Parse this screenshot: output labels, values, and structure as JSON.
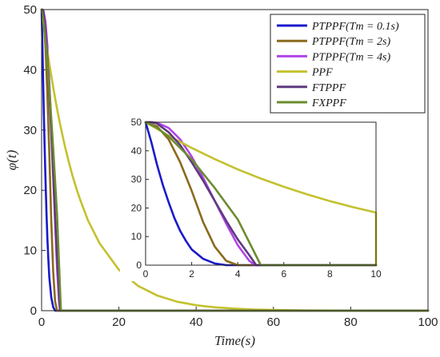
{
  "chart_data": [
    {
      "type": "line",
      "title": "",
      "xlabel": "Time(s)",
      "ylabel": "φ(t)",
      "xlim": [
        0,
        100
      ],
      "ylim": [
        0,
        50
      ],
      "xticks": [
        "0",
        "20",
        "40",
        "60",
        "80",
        "100"
      ],
      "yticks": [
        "0",
        "10",
        "20",
        "30",
        "40",
        "50"
      ],
      "grid": false,
      "legend_position": "top-right",
      "series": [
        {
          "name": "PTPPF(Tm = 0.1s)",
          "color": "#1a1acc",
          "x": [
            0,
            0.25,
            0.5,
            0.75,
            1.0,
            1.25,
            1.5,
            1.75,
            2.0,
            2.5,
            3.0,
            3.5,
            100
          ],
          "y": [
            50,
            43,
            35,
            28,
            22,
            16.5,
            12,
            8.5,
            5.5,
            2.2,
            0.6,
            0,
            0
          ]
        },
        {
          "name": "PTPPF(Tm = 2s)",
          "color": "#8b6a1e",
          "x": [
            0,
            0.5,
            1.0,
            1.5,
            2.0,
            2.5,
            3.0,
            3.5,
            4.0,
            100
          ],
          "y": [
            50,
            48.5,
            44,
            36,
            26,
            15,
            6.5,
            1.5,
            0,
            0
          ]
        },
        {
          "name": "PTPPF(Tm = 4s)",
          "color": "#b044e8",
          "x": [
            0,
            0.25,
            0.5,
            1.0,
            1.5,
            2.0,
            2.5,
            3.0,
            3.5,
            4.0,
            4.5,
            4.75,
            100
          ],
          "y": [
            50,
            50,
            49.8,
            48,
            44,
            38,
            30.5,
            22.5,
            14.5,
            7.0,
            1.5,
            0,
            0
          ]
        },
        {
          "name": "PPF",
          "color": "#c3c12e",
          "x": [
            0,
            1,
            2,
            3,
            4,
            5,
            6,
            7,
            8,
            9,
            10,
            12,
            15,
            20,
            25,
            30,
            35,
            40,
            45,
            50,
            55,
            60,
            65,
            70,
            80,
            90,
            100
          ],
          "y": [
            50,
            45.3,
            41,
            37.1,
            33.5,
            30.3,
            27.4,
            24.8,
            22.4,
            20.3,
            18.4,
            15,
            11.2,
            6.8,
            4.1,
            2.5,
            1.5,
            0.9,
            0.55,
            0.34,
            0.2,
            0.12,
            0.07,
            0.04,
            0.01,
            0,
            0
          ]
        },
        {
          "name": "FTPPF",
          "color": "#5e3a80",
          "x": [
            0,
            0.25,
            0.5,
            1.0,
            1.5,
            2.0,
            2.5,
            3.0,
            3.5,
            4.0,
            4.5,
            4.8,
            100
          ],
          "y": [
            50,
            50,
            49.5,
            46.5,
            42,
            36,
            29.5,
            22.5,
            15.5,
            9,
            3.5,
            0,
            0
          ]
        },
        {
          "name": "FXPPF",
          "color": "#6c8c2e",
          "x": [
            0,
            0.5,
            1.0,
            2.0,
            3.0,
            4.0,
            5.0,
            100
          ],
          "y": [
            50,
            48,
            45,
            37,
            27,
            16,
            0,
            0
          ]
        }
      ]
    },
    {
      "type": "line",
      "title": "",
      "xlim": [
        0,
        10
      ],
      "ylim": [
        0,
        50
      ],
      "xticks": [
        "0",
        "2",
        "4",
        "6",
        "8",
        "10"
      ],
      "yticks": [
        "0",
        "10",
        "20",
        "30",
        "40",
        "50"
      ],
      "grid": false
    }
  ]
}
